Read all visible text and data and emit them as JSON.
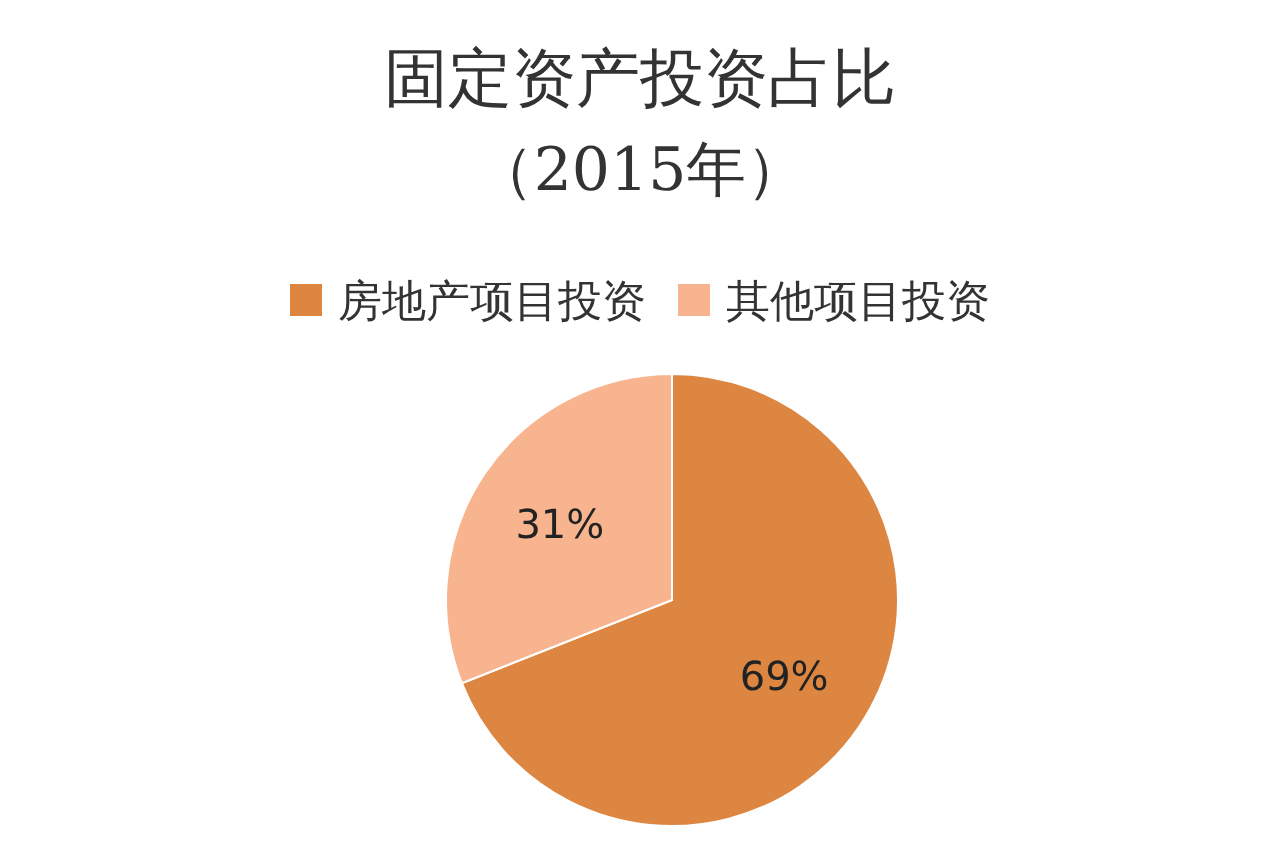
{
  "chart_data": {
    "type": "pie",
    "title": "固定资产投资占比",
    "subtitle": "（2015年）",
    "categories": [
      "房地产项目投资",
      "其他项目投资"
    ],
    "values": [
      69,
      31
    ],
    "colors": [
      "#dd8642",
      "#f8b48f"
    ],
    "value_labels": [
      "69%",
      "31%"
    ],
    "legend": "top"
  }
}
